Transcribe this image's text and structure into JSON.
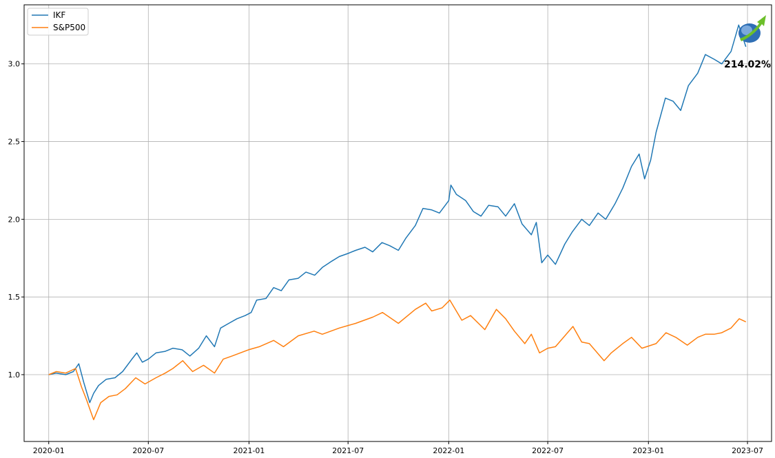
{
  "chart_data": {
    "type": "line",
    "title": "",
    "xlabel": "",
    "ylabel": "",
    "x_axis_type": "date",
    "xlim": [
      "2019-11-17",
      "2023-08-14"
    ],
    "ylim": [
      0.57,
      3.38
    ],
    "x_ticks": [
      "2020-01",
      "2020-07",
      "2021-01",
      "2021-07",
      "2022-01",
      "2022-07",
      "2023-01",
      "2023-07"
    ],
    "y_ticks": [
      "1.0",
      "1.5",
      "2.0",
      "2.5",
      "3.0"
    ],
    "grid": true,
    "legend_position": "top-left",
    "annotation": "214.02%",
    "logo": "growth-arrow-logo",
    "series": [
      {
        "name": "IKF",
        "color": "#1f77b4",
        "points": [
          [
            "2020-01-01",
            1.0
          ],
          [
            "2020-01-15",
            1.01
          ],
          [
            "2020-02-01",
            1.0
          ],
          [
            "2020-02-15",
            1.02
          ],
          [
            "2020-02-25",
            1.07
          ],
          [
            "2020-03-05",
            0.95
          ],
          [
            "2020-03-16",
            0.82
          ],
          [
            "2020-03-23",
            0.88
          ],
          [
            "2020-04-01",
            0.93
          ],
          [
            "2020-04-15",
            0.97
          ],
          [
            "2020-05-01",
            0.98
          ],
          [
            "2020-05-15",
            1.02
          ],
          [
            "2020-06-01",
            1.1
          ],
          [
            "2020-06-10",
            1.14
          ],
          [
            "2020-06-20",
            1.08
          ],
          [
            "2020-07-01",
            1.1
          ],
          [
            "2020-07-15",
            1.14
          ],
          [
            "2020-08-01",
            1.15
          ],
          [
            "2020-08-15",
            1.17
          ],
          [
            "2020-09-01",
            1.16
          ],
          [
            "2020-09-15",
            1.12
          ],
          [
            "2020-10-01",
            1.17
          ],
          [
            "2020-10-15",
            1.25
          ],
          [
            "2020-10-30",
            1.18
          ],
          [
            "2020-11-10",
            1.3
          ],
          [
            "2020-11-25",
            1.33
          ],
          [
            "2020-12-10",
            1.36
          ],
          [
            "2020-12-25",
            1.38
          ],
          [
            "2021-01-05",
            1.4
          ],
          [
            "2021-01-15",
            1.48
          ],
          [
            "2021-02-01",
            1.49
          ],
          [
            "2021-02-15",
            1.56
          ],
          [
            "2021-03-01",
            1.54
          ],
          [
            "2021-03-15",
            1.61
          ],
          [
            "2021-04-01",
            1.62
          ],
          [
            "2021-04-15",
            1.66
          ],
          [
            "2021-05-01",
            1.64
          ],
          [
            "2021-05-15",
            1.69
          ],
          [
            "2021-06-01",
            1.73
          ],
          [
            "2021-06-15",
            1.76
          ],
          [
            "2021-07-01",
            1.78
          ],
          [
            "2021-07-15",
            1.8
          ],
          [
            "2021-08-01",
            1.82
          ],
          [
            "2021-08-15",
            1.79
          ],
          [
            "2021-09-01",
            1.85
          ],
          [
            "2021-09-15",
            1.83
          ],
          [
            "2021-10-01",
            1.8
          ],
          [
            "2021-10-15",
            1.88
          ],
          [
            "2021-11-01",
            1.96
          ],
          [
            "2021-11-15",
            2.07
          ],
          [
            "2021-12-01",
            2.06
          ],
          [
            "2021-12-15",
            2.04
          ],
          [
            "2022-01-01",
            2.12
          ],
          [
            "2022-01-05",
            2.22
          ],
          [
            "2022-01-15",
            2.16
          ],
          [
            "2022-02-01",
            2.12
          ],
          [
            "2022-02-15",
            2.05
          ],
          [
            "2022-03-01",
            2.02
          ],
          [
            "2022-03-15",
            2.09
          ],
          [
            "2022-04-01",
            2.08
          ],
          [
            "2022-04-15",
            2.02
          ],
          [
            "2022-05-01",
            2.1
          ],
          [
            "2022-05-15",
            1.97
          ],
          [
            "2022-06-01",
            1.9
          ],
          [
            "2022-06-10",
            1.98
          ],
          [
            "2022-06-20",
            1.72
          ],
          [
            "2022-07-01",
            1.77
          ],
          [
            "2022-07-15",
            1.71
          ],
          [
            "2022-08-01",
            1.84
          ],
          [
            "2022-08-15",
            1.92
          ],
          [
            "2022-09-01",
            2.0
          ],
          [
            "2022-09-15",
            1.96
          ],
          [
            "2022-10-01",
            2.04
          ],
          [
            "2022-10-15",
            2.0
          ],
          [
            "2022-11-01",
            2.1
          ],
          [
            "2022-11-15",
            2.2
          ],
          [
            "2022-12-01",
            2.34
          ],
          [
            "2022-12-15",
            2.42
          ],
          [
            "2022-12-25",
            2.26
          ],
          [
            "2023-01-05",
            2.38
          ],
          [
            "2023-01-15",
            2.56
          ],
          [
            "2023-02-01",
            2.78
          ],
          [
            "2023-02-15",
            2.76
          ],
          [
            "2023-03-01",
            2.7
          ],
          [
            "2023-03-15",
            2.86
          ],
          [
            "2023-04-01",
            2.94
          ],
          [
            "2023-04-15",
            3.06
          ],
          [
            "2023-05-01",
            3.03
          ],
          [
            "2023-05-15",
            3.0
          ],
          [
            "2023-06-01",
            3.08
          ],
          [
            "2023-06-15",
            3.25
          ],
          [
            "2023-06-28",
            3.11
          ]
        ]
      },
      {
        "name": "S&P500",
        "color": "#ff7f0e",
        "points": [
          [
            "2020-01-01",
            1.0
          ],
          [
            "2020-01-15",
            1.02
          ],
          [
            "2020-02-01",
            1.01
          ],
          [
            "2020-02-19",
            1.04
          ],
          [
            "2020-03-01",
            0.92
          ],
          [
            "2020-03-10",
            0.84
          ],
          [
            "2020-03-23",
            0.71
          ],
          [
            "2020-04-05",
            0.82
          ],
          [
            "2020-04-20",
            0.86
          ],
          [
            "2020-05-05",
            0.87
          ],
          [
            "2020-05-20",
            0.91
          ],
          [
            "2020-06-08",
            0.98
          ],
          [
            "2020-06-25",
            0.94
          ],
          [
            "2020-07-15",
            0.98
          ],
          [
            "2020-08-01",
            1.01
          ],
          [
            "2020-08-15",
            1.04
          ],
          [
            "2020-09-02",
            1.09
          ],
          [
            "2020-09-20",
            1.02
          ],
          [
            "2020-10-10",
            1.06
          ],
          [
            "2020-10-30",
            1.01
          ],
          [
            "2020-11-15",
            1.1
          ],
          [
            "2020-12-01",
            1.12
          ],
          [
            "2020-12-31",
            1.16
          ],
          [
            "2021-01-20",
            1.18
          ],
          [
            "2021-02-15",
            1.22
          ],
          [
            "2021-03-05",
            1.18
          ],
          [
            "2021-04-01",
            1.25
          ],
          [
            "2021-04-30",
            1.28
          ],
          [
            "2021-05-15",
            1.26
          ],
          [
            "2021-06-15",
            1.3
          ],
          [
            "2021-07-15",
            1.33
          ],
          [
            "2021-08-15",
            1.37
          ],
          [
            "2021-09-02",
            1.4
          ],
          [
            "2021-10-01",
            1.33
          ],
          [
            "2021-11-01",
            1.42
          ],
          [
            "2021-11-20",
            1.46
          ],
          [
            "2021-12-01",
            1.41
          ],
          [
            "2021-12-20",
            1.43
          ],
          [
            "2022-01-03",
            1.48
          ],
          [
            "2022-01-25",
            1.35
          ],
          [
            "2022-02-10",
            1.38
          ],
          [
            "2022-03-08",
            1.29
          ],
          [
            "2022-03-29",
            1.42
          ],
          [
            "2022-04-15",
            1.36
          ],
          [
            "2022-05-01",
            1.28
          ],
          [
            "2022-05-20",
            1.2
          ],
          [
            "2022-06-01",
            1.26
          ],
          [
            "2022-06-16",
            1.14
          ],
          [
            "2022-07-01",
            1.17
          ],
          [
            "2022-07-15",
            1.18
          ],
          [
            "2022-08-16",
            1.31
          ],
          [
            "2022-09-01",
            1.21
          ],
          [
            "2022-09-15",
            1.2
          ],
          [
            "2022-10-12",
            1.09
          ],
          [
            "2022-10-25",
            1.14
          ],
          [
            "2022-11-15",
            1.2
          ],
          [
            "2022-12-01",
            1.24
          ],
          [
            "2022-12-20",
            1.17
          ],
          [
            "2023-01-15",
            1.2
          ],
          [
            "2023-02-02",
            1.27
          ],
          [
            "2023-02-20",
            1.24
          ],
          [
            "2023-03-13",
            1.19
          ],
          [
            "2023-04-01",
            1.24
          ],
          [
            "2023-04-15",
            1.26
          ],
          [
            "2023-05-01",
            1.26
          ],
          [
            "2023-05-15",
            1.27
          ],
          [
            "2023-06-01",
            1.3
          ],
          [
            "2023-06-16",
            1.36
          ],
          [
            "2023-06-28",
            1.34
          ]
        ]
      }
    ]
  }
}
